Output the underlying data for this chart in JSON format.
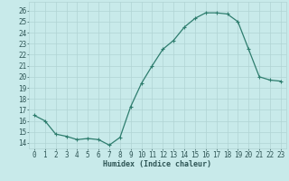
{
  "x": [
    0,
    1,
    2,
    3,
    4,
    5,
    6,
    7,
    8,
    9,
    10,
    11,
    12,
    13,
    14,
    15,
    16,
    17,
    18,
    19,
    20,
    21,
    22,
    23
  ],
  "y": [
    16.5,
    16.0,
    14.8,
    14.6,
    14.3,
    14.4,
    14.3,
    13.8,
    14.5,
    17.3,
    19.4,
    21.0,
    22.5,
    23.3,
    24.5,
    25.3,
    25.8,
    25.8,
    25.7,
    25.0,
    22.5,
    20.0,
    19.7,
    19.6
  ],
  "line_color": "#2e7d6e",
  "marker": "+",
  "bg_color": "#c8eaea",
  "grid_color": "#b0d4d4",
  "xlabel": "Humidex (Indice chaleur)",
  "ylim": [
    13.5,
    26.8
  ],
  "xlim": [
    -0.5,
    23.5
  ],
  "yticks": [
    14,
    15,
    16,
    17,
    18,
    19,
    20,
    21,
    22,
    23,
    24,
    25,
    26
  ],
  "xticks": [
    0,
    1,
    2,
    3,
    4,
    5,
    6,
    7,
    8,
    9,
    10,
    11,
    12,
    13,
    14,
    15,
    16,
    17,
    18,
    19,
    20,
    21,
    22,
    23
  ],
  "font_color": "#2e5555",
  "label_fontsize": 6.0,
  "tick_fontsize": 5.5,
  "linewidth": 0.9,
  "markersize": 3.0,
  "markeredgewidth": 0.8
}
